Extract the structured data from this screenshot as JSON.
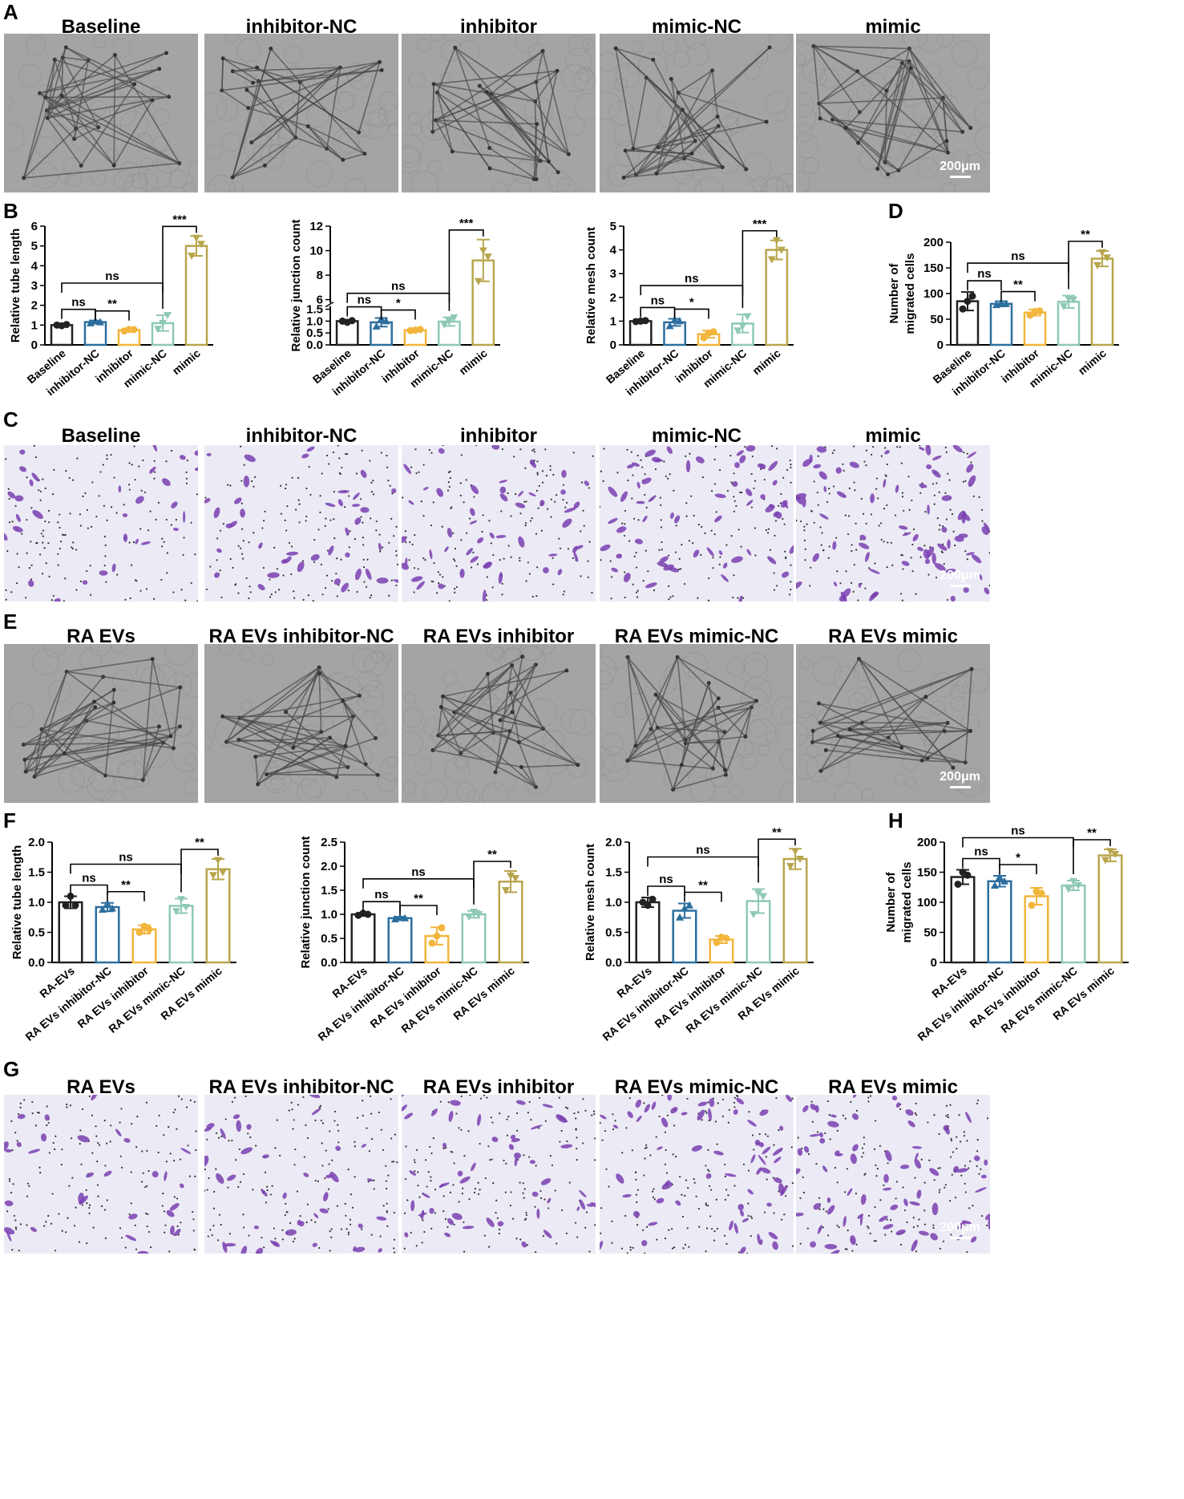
{
  "panels": {
    "A": "A",
    "B": "B",
    "C": "C",
    "D": "D",
    "E": "E",
    "F": "F",
    "G": "G",
    "H": "H"
  },
  "rows": {
    "A": {
      "titles": [
        "Baseline",
        "inhibitor-NC",
        "inhibitor",
        "mimic-NC",
        "mimic"
      ],
      "scalebar": "200μm"
    },
    "C": {
      "titles": [
        "Baseline",
        "inhibitor-NC",
        "inhibitor",
        "mimic-NC",
        "mimic"
      ],
      "scalebar": "200μm"
    },
    "E": {
      "titles": [
        "RA EVs",
        "RA EVs inhibitor-NC",
        "RA EVs inhibitor",
        "RA EVs mimic-NC",
        "RA EVs mimic"
      ],
      "scalebar": "200μm"
    },
    "G": {
      "titles": [
        "RA EVs",
        "RA EVs inhibitor-NC",
        "RA EVs inhibitor",
        "RA EVs mimic-NC",
        "RA EVs mimic"
      ],
      "scalebar": "200μm"
    }
  },
  "colors": {
    "black": "#222222",
    "blue": "#2c6e9e",
    "yellow": "#f2b63d",
    "teal": "#8fc9b6",
    "olive": "#b8a64d"
  },
  "chart_data": [
    {
      "id": "B1",
      "type": "bar",
      "categories": [
        "Baseline",
        "inhibitor-NC",
        "inhibitor",
        "mimic-NC",
        "mimic"
      ],
      "values": [
        1.0,
        1.15,
        0.75,
        1.1,
        5.0
      ],
      "errors": [
        0.05,
        0.08,
        0.06,
        0.4,
        0.5
      ],
      "points": [
        [
          1.0,
          0.97,
          1.03
        ],
        [
          1.1,
          1.2,
          1.15
        ],
        [
          0.7,
          0.78,
          0.77
        ],
        [
          0.8,
          1.1,
          1.5
        ],
        [
          4.5,
          5.4,
          5.1
        ]
      ],
      "ylabel": "Relative tube length",
      "ylim": [
        0,
        6
      ],
      "yticks": [
        0,
        1,
        2,
        3,
        4,
        5,
        6
      ],
      "brackets": [
        {
          "from": 0,
          "to": 1,
          "label": "ns"
        },
        {
          "from": 1,
          "to": 2,
          "label": "**"
        },
        {
          "from": 0,
          "to": 3,
          "label": "ns"
        },
        {
          "from": 3,
          "to": 4,
          "label": "***"
        }
      ]
    },
    {
      "id": "B2",
      "type": "bar",
      "categories": [
        "Baseline",
        "inhibitor-NC",
        "inhibitor",
        "mimic-NC",
        "mimic"
      ],
      "values": [
        1.0,
        0.95,
        0.62,
        0.98,
        9.2
      ],
      "errors": [
        0.05,
        0.18,
        0.05,
        0.18,
        1.7
      ],
      "points": [
        [
          1.0,
          0.95,
          1.02
        ],
        [
          0.78,
          1.1,
          1.0
        ],
        [
          0.6,
          0.62,
          0.65
        ],
        [
          0.85,
          1.0,
          1.15
        ],
        [
          7.5,
          10.0,
          9.5
        ]
      ],
      "ylabel": "Relative junction count",
      "yticks": [
        0.0,
        0.5,
        1.0,
        1.5,
        6,
        8,
        10,
        12
      ],
      "brackets": [
        {
          "from": 0,
          "to": 1,
          "label": "ns"
        },
        {
          "from": 1,
          "to": 2,
          "label": "*"
        },
        {
          "from": 0,
          "to": 3,
          "label": "ns"
        },
        {
          "from": 3,
          "to": 4,
          "label": "***"
        }
      ]
    },
    {
      "id": "B3",
      "type": "bar",
      "categories": [
        "Baseline",
        "inhibitor-NC",
        "inhibitor",
        "mimic-NC",
        "mimic"
      ],
      "values": [
        1.0,
        0.95,
        0.45,
        0.9,
        4.0
      ],
      "errors": [
        0.05,
        0.15,
        0.15,
        0.38,
        0.4
      ],
      "points": [
        [
          0.98,
          1.0,
          1.02
        ],
        [
          0.8,
          1.05,
          1.0
        ],
        [
          0.3,
          0.5,
          0.55
        ],
        [
          0.6,
          0.8,
          1.2
        ],
        [
          3.6,
          4.4,
          4.0
        ]
      ],
      "ylabel": "Relative mesh count",
      "ylim": [
        0,
        5
      ],
      "yticks": [
        0,
        1,
        2,
        3,
        4,
        5
      ],
      "brackets": [
        {
          "from": 0,
          "to": 1,
          "label": "ns"
        },
        {
          "from": 1,
          "to": 2,
          "label": "*"
        },
        {
          "from": 0,
          "to": 3,
          "label": "ns"
        },
        {
          "from": 3,
          "to": 4,
          "label": "***"
        }
      ]
    },
    {
      "id": "D",
      "type": "bar",
      "categories": [
        "Baseline",
        "inhibitor-NC",
        "inhibitor",
        "mimic-NC",
        "mimic"
      ],
      "values": [
        85,
        80,
        63,
        84,
        168
      ],
      "errors": [
        18,
        5,
        6,
        12,
        15
      ],
      "points": [
        [
          70,
          85,
          95
        ],
        [
          78,
          82,
          80
        ],
        [
          58,
          65,
          66
        ],
        [
          75,
          90,
          88
        ],
        [
          155,
          180,
          170
        ]
      ],
      "ylabel": "Number of migrated cells",
      "ylim": [
        0,
        200
      ],
      "yticks": [
        0,
        50,
        100,
        150,
        200
      ],
      "brackets": [
        {
          "from": 0,
          "to": 1,
          "label": "ns"
        },
        {
          "from": 1,
          "to": 2,
          "label": "**"
        },
        {
          "from": 0,
          "to": 3,
          "label": "ns"
        },
        {
          "from": 3,
          "to": 4,
          "label": "**"
        }
      ]
    },
    {
      "id": "F1",
      "type": "bar",
      "categories": [
        "RA-EVs",
        "RA EVs inhibitor-NC",
        "RA EVs inhibitor",
        "RA EVs mimic-NC",
        "RA EVs mimic"
      ],
      "values": [
        1.0,
        0.92,
        0.55,
        0.94,
        1.55
      ],
      "errors": [
        0.1,
        0.07,
        0.07,
        0.12,
        0.17
      ],
      "points": [
        [
          0.95,
          1.1,
          0.95
        ],
        [
          0.88,
          0.98,
          0.9
        ],
        [
          0.5,
          0.6,
          0.55
        ],
        [
          0.85,
          1.05,
          0.92
        ],
        [
          1.45,
          1.7,
          1.5
        ]
      ],
      "ylabel": "Relative tube length",
      "ylim": [
        0,
        2.0
      ],
      "yticks": [
        0.0,
        0.5,
        1.0,
        1.5,
        2.0
      ],
      "brackets": [
        {
          "from": 0,
          "to": 1,
          "label": "ns"
        },
        {
          "from": 1,
          "to": 2,
          "label": "**"
        },
        {
          "from": 0,
          "to": 3,
          "label": "ns"
        },
        {
          "from": 3,
          "to": 4,
          "label": "**"
        }
      ]
    },
    {
      "id": "F2",
      "type": "bar",
      "categories": [
        "RA-EVs",
        "RA EVs inhibitor-NC",
        "RA EVs inhibitor",
        "RA EVs mimic-NC",
        "RA EVs mimic"
      ],
      "values": [
        1.0,
        0.92,
        0.55,
        1.0,
        1.68
      ],
      "errors": [
        0.03,
        0.03,
        0.18,
        0.07,
        0.22
      ],
      "points": [
        [
          0.98,
          1.02,
          1.0
        ],
        [
          0.9,
          0.93,
          0.92
        ],
        [
          0.4,
          0.55,
          0.72
        ],
        [
          0.95,
          1.05,
          1.0
        ],
        [
          1.5,
          1.8,
          1.75
        ]
      ],
      "ylabel": "Relative junction count",
      "ylim": [
        0,
        2.5
      ],
      "yticks": [
        0.0,
        0.5,
        1.0,
        1.5,
        2.0,
        2.5
      ],
      "brackets": [
        {
          "from": 0,
          "to": 1,
          "label": "ns"
        },
        {
          "from": 1,
          "to": 2,
          "label": "**"
        },
        {
          "from": 0,
          "to": 3,
          "label": "ns"
        },
        {
          "from": 3,
          "to": 4,
          "label": "**"
        }
      ]
    },
    {
      "id": "F3",
      "type": "bar",
      "categories": [
        "RA-EVs",
        "RA EVs inhibitor-NC",
        "RA EVs inhibitor",
        "RA EVs mimic-NC",
        "RA EVs mimic"
      ],
      "values": [
        1.0,
        0.86,
        0.38,
        1.02,
        1.72
      ],
      "errors": [
        0.08,
        0.12,
        0.06,
        0.2,
        0.17
      ],
      "points": [
        [
          1.0,
          0.95,
          1.05
        ],
        [
          0.75,
          0.9,
          0.95
        ],
        [
          0.33,
          0.42,
          0.4
        ],
        [
          0.8,
          1.15,
          1.1
        ],
        [
          1.6,
          1.85,
          1.72
        ]
      ],
      "ylabel": "Relative mesh count",
      "ylim": [
        0,
        2.0
      ],
      "yticks": [
        0.0,
        0.5,
        1.0,
        1.5,
        2.0
      ],
      "brackets": [
        {
          "from": 0,
          "to": 1,
          "label": "ns"
        },
        {
          "from": 1,
          "to": 2,
          "label": "**"
        },
        {
          "from": 0,
          "to": 3,
          "label": "ns"
        },
        {
          "from": 3,
          "to": 4,
          "label": "**"
        }
      ]
    },
    {
      "id": "H",
      "type": "bar",
      "categories": [
        "RA-EVs",
        "RA EVs inhibitor-NC",
        "RA EVs inhibitor",
        "RA EVs mimic-NC",
        "RA EVs mimic"
      ],
      "values": [
        142,
        135,
        110,
        128,
        178
      ],
      "errors": [
        12,
        9,
        14,
        8,
        10
      ],
      "points": [
        [
          130,
          150,
          145
        ],
        [
          128,
          142,
          135
        ],
        [
          95,
          118,
          115
        ],
        [
          122,
          135,
          128
        ],
        [
          170,
          185,
          180
        ]
      ],
      "ylabel": "Number of migrated cells",
      "ylim": [
        0,
        200
      ],
      "yticks": [
        0,
        50,
        100,
        150,
        200
      ],
      "brackets": [
        {
          "from": 0,
          "to": 1,
          "label": "ns"
        },
        {
          "from": 1,
          "to": 2,
          "label": "*"
        },
        {
          "from": 0,
          "to": 3,
          "label": "ns"
        },
        {
          "from": 3,
          "to": 4,
          "label": "**"
        }
      ]
    }
  ]
}
